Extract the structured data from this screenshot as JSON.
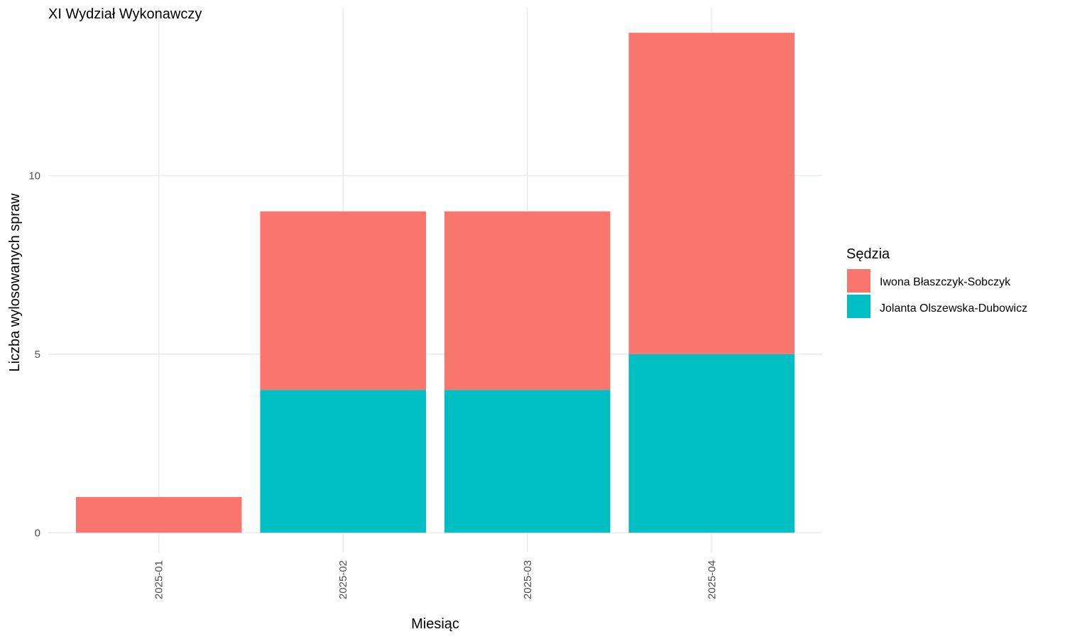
{
  "chart_data": {
    "type": "bar",
    "stacked": true,
    "title": "XI Wydział Wykonawczy",
    "xlabel": "Miesiąc",
    "ylabel": "Liczba wylosowanych spraw",
    "categories": [
      "2025-01",
      "2025-02",
      "2025-03",
      "2025-04"
    ],
    "series": [
      {
        "name": "Jolanta Olszewska-Dubowicz",
        "color": "#00BFC4",
        "values": [
          0,
          4,
          4,
          5
        ]
      },
      {
        "name": "Iwona Błaszczyk-Sobczyk",
        "color": "#F8766D",
        "values": [
          1,
          5,
          5,
          9
        ]
      }
    ],
    "legend": {
      "title": "Sędzia",
      "position": "right",
      "entries": [
        "Iwona Błaszczyk-Sobczyk",
        "Jolanta Olszewska-Dubowicz"
      ]
    },
    "yticks": [
      0,
      5,
      10
    ],
    "ylim": [
      -0.55,
      14.7
    ],
    "grid": true,
    "xtick_rotation": -90
  }
}
